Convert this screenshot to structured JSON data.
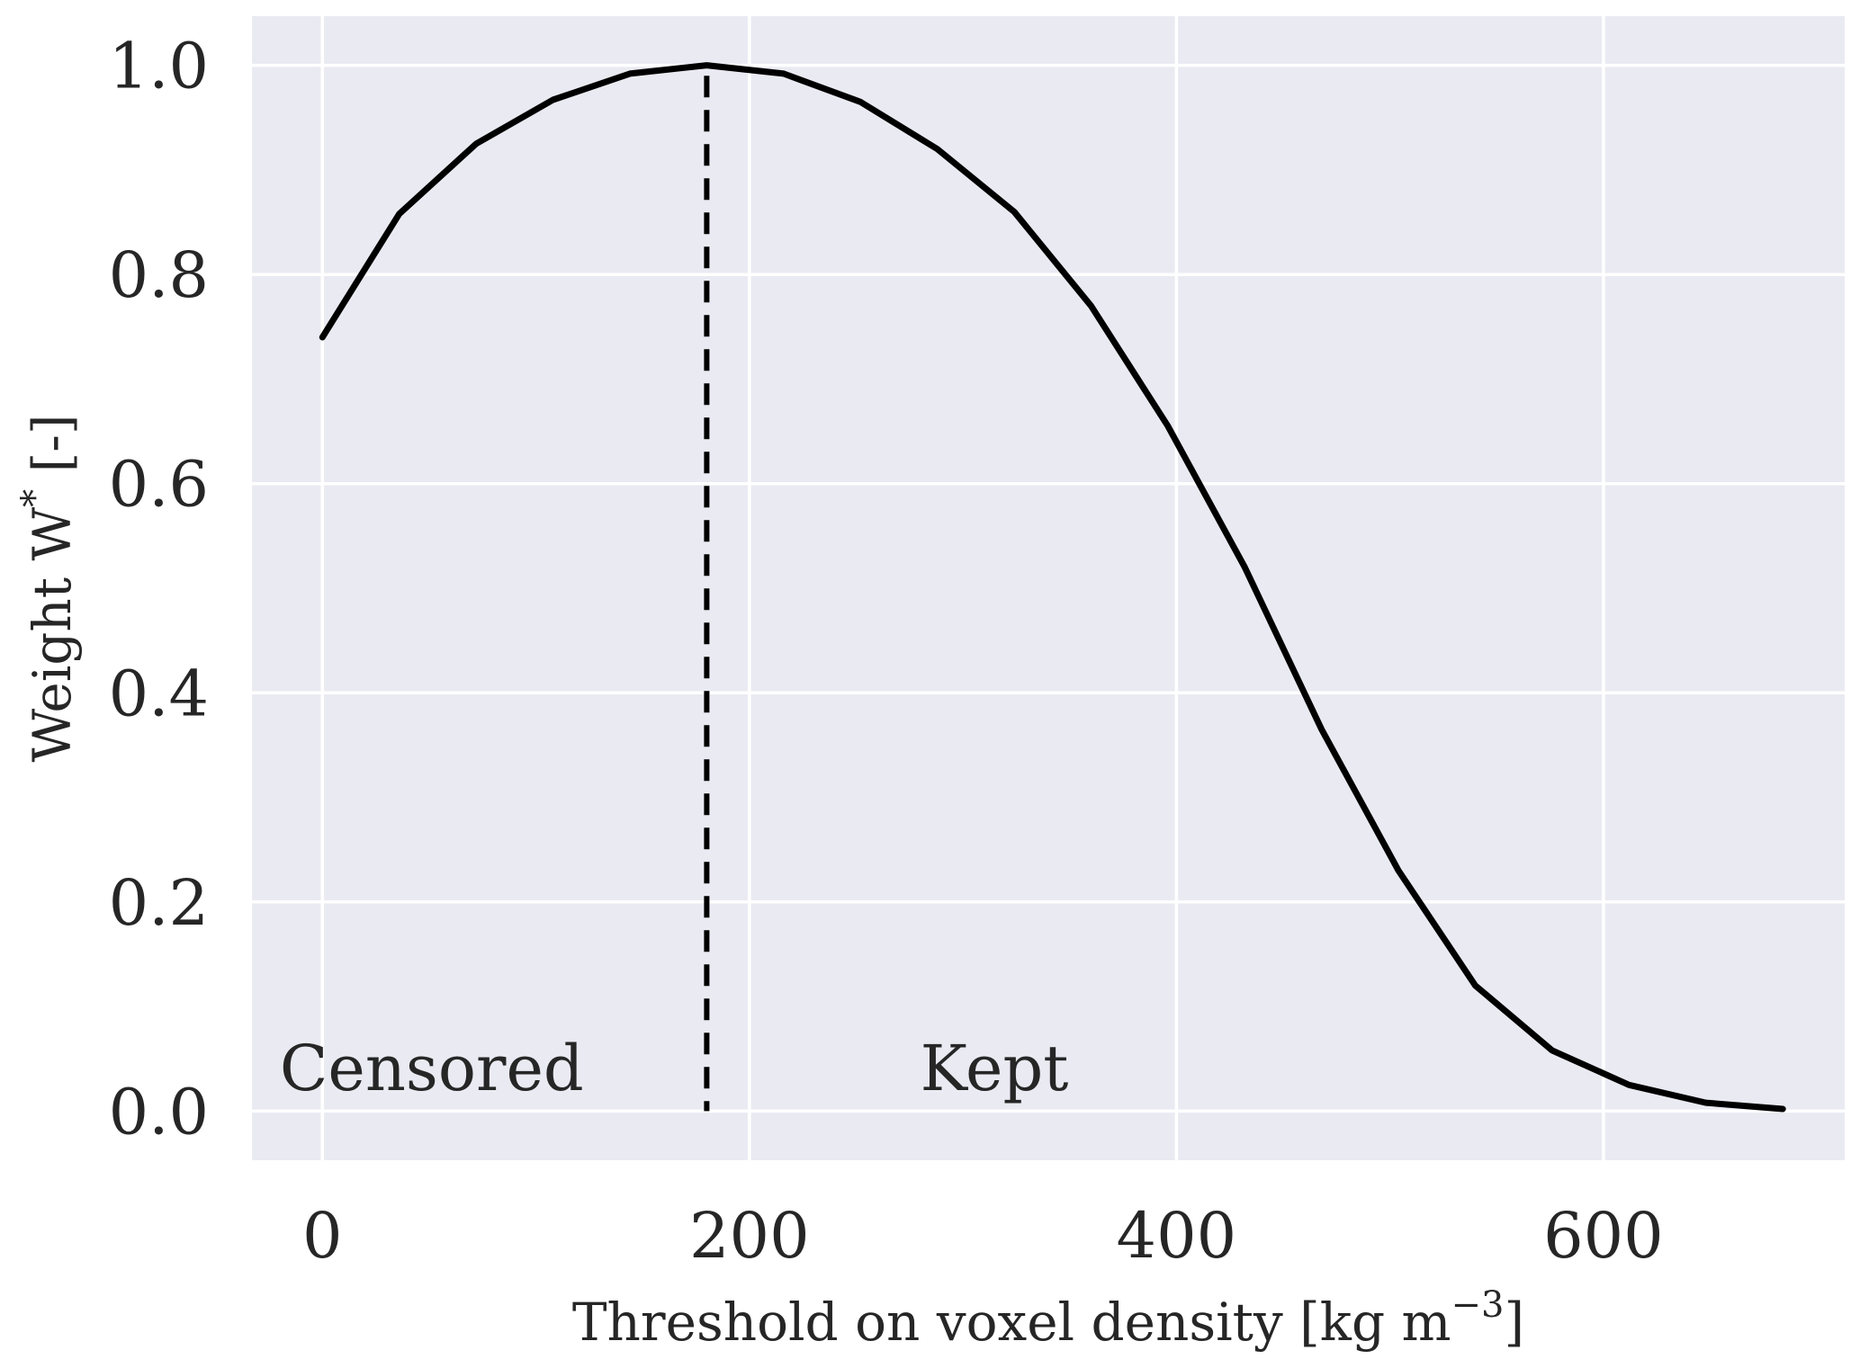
{
  "chart_data": {
    "type": "line",
    "xlabel_main": "Threshold on voxel density [kg m",
    "xlabel_sup": "−3",
    "xlabel_end": "]",
    "ylabel_main": "Weight W",
    "ylabel_sup": "*",
    "ylabel_end": " [-]",
    "xlim": [
      -33,
      713
    ],
    "ylim": [
      -0.047,
      1.047
    ],
    "xticks": [
      0,
      200,
      400,
      600
    ],
    "xtick_labels": [
      "0",
      "200",
      "400",
      "600"
    ],
    "yticks": [
      0.0,
      0.2,
      0.4,
      0.6,
      0.8,
      1.0
    ],
    "ytick_labels": [
      "0.0",
      "0.2",
      "0.4",
      "0.6",
      "0.8",
      "1.0"
    ],
    "grid": true,
    "background": "#eaeaf2",
    "line_color": "#000000",
    "series": [
      {
        "x": [
          0,
          36,
          72,
          108,
          144,
          180,
          216,
          252,
          288,
          324,
          360,
          396,
          432,
          468,
          504,
          540,
          576,
          612,
          648,
          684
        ],
        "y": [
          0.74,
          0.858,
          0.925,
          0.967,
          0.992,
          1.0,
          0.992,
          0.965,
          0.92,
          0.86,
          0.77,
          0.655,
          0.52,
          0.365,
          0.23,
          0.12,
          0.058,
          0.025,
          0.008,
          0.002
        ]
      }
    ],
    "vline": {
      "x": 180,
      "style": "dashed"
    },
    "annotations": [
      {
        "text": "Censored",
        "x": -20,
        "y": 0.02
      },
      {
        "text": "Kept",
        "x": 280,
        "y": 0.02
      }
    ]
  }
}
